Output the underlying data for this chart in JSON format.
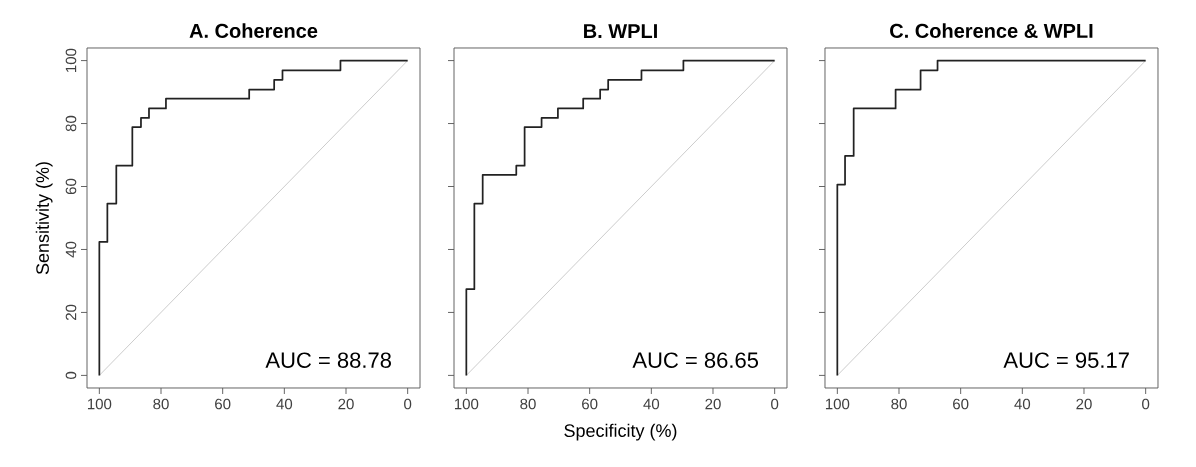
{
  "chart_data": [
    {
      "type": "step",
      "title": "A. Coherence",
      "ylabel": "Sensitivity (%)",
      "xlim": [
        104,
        -4
      ],
      "ylim": [
        -4,
        104
      ],
      "xticks": [
        100,
        80,
        60,
        40,
        20,
        0
      ],
      "yticks": [
        0,
        20,
        40,
        60,
        80,
        100
      ],
      "grid": false,
      "annotations": [
        "AUC = 88.78"
      ],
      "series": [
        {
          "type": "line",
          "color": "#c8c8c8",
          "x": [
            100,
            0
          ],
          "values": [
            0,
            100
          ]
        },
        {
          "color": "#222222",
          "x": [
            100,
            100,
            97.4,
            94.5,
            89.3,
            86.5,
            83.9,
            78.4,
            51.4,
            43.3,
            40.6,
            21.8,
            0
          ],
          "values": [
            0,
            42.4,
            54.6,
            66.6,
            78.9,
            81.8,
            84.8,
            87.9,
            90.8,
            93.9,
            96.9,
            100,
            100
          ]
        }
      ]
    },
    {
      "type": "step",
      "title": "B. WPLI",
      "xlabel": "Specificity (%)",
      "xlim": [
        104,
        -4
      ],
      "ylim": [
        -4,
        104
      ],
      "xticks": [
        100,
        80,
        60,
        40,
        20,
        0
      ],
      "yticks": [
        0,
        20,
        40,
        60,
        80,
        100
      ],
      "tick_labels": "x",
      "grid": false,
      "annotations": [
        "AUC = 86.65"
      ],
      "series": [
        {
          "type": "line",
          "color": "#c8c8c8",
          "x": [
            100,
            0
          ],
          "values": [
            0,
            100
          ]
        },
        {
          "color": "#222222",
          "x": [
            100,
            100,
            97.4,
            94.7,
            83.8,
            81.1,
            75.6,
            70.3,
            62.1,
            56.6,
            54.0,
            43.2,
            29.6,
            0
          ],
          "values": [
            0,
            27.4,
            54.6,
            63.7,
            66.6,
            78.9,
            81.8,
            84.8,
            87.9,
            90.8,
            93.9,
            96.9,
            100,
            100
          ]
        }
      ]
    },
    {
      "type": "step",
      "title": "C. Coherence & WPLI",
      "xlim": [
        104,
        -4
      ],
      "ylim": [
        -4,
        104
      ],
      "xticks": [
        100,
        80,
        60,
        40,
        20,
        0
      ],
      "yticks": [
        0,
        20,
        40,
        60,
        80,
        100
      ],
      "tick_labels": "x",
      "grid": false,
      "annotations": [
        "AUC = 95.17"
      ],
      "series": [
        {
          "type": "line",
          "color": "#c8c8c8",
          "x": [
            100,
            0
          ],
          "values": [
            0,
            100
          ]
        },
        {
          "color": "#222222",
          "x": [
            100,
            100,
            97.5,
            94.7,
            81.1,
            73.0,
            67.5,
            0
          ],
          "values": [
            0,
            60.6,
            69.7,
            84.8,
            90.8,
            96.9,
            100,
            100
          ]
        }
      ]
    }
  ]
}
